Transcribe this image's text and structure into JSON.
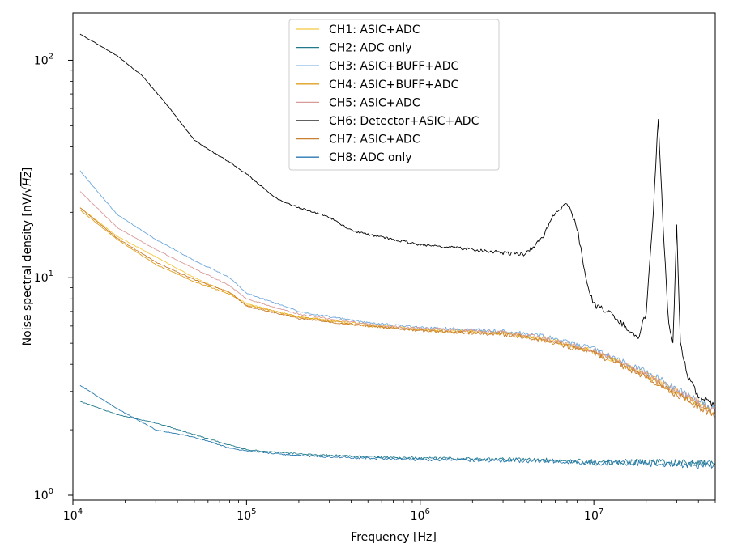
{
  "chart_data": {
    "type": "line",
    "title": "",
    "xlabel": "Frequency [Hz]",
    "ylabel_prefix": "Noise spectral density [nV/",
    "ylabel_radicand": "Hz",
    "ylabel_suffix": "]",
    "xscale": "log",
    "yscale": "log",
    "xlim": [
      10000,
      50000000
    ],
    "ylim": [
      0.95,
      165
    ],
    "grid": false,
    "legend_position": "upper-center",
    "x_ticks": [
      {
        "value": 10000,
        "base": "10",
        "exp": "4"
      },
      {
        "value": 100000,
        "base": "10",
        "exp": "5"
      },
      {
        "value": 1000000,
        "base": "10",
        "exp": "6"
      },
      {
        "value": 10000000,
        "base": "10",
        "exp": "7"
      }
    ],
    "y_ticks": [
      {
        "value": 1,
        "base": "10",
        "exp": "0"
      },
      {
        "value": 10,
        "base": "10",
        "exp": "1"
      },
      {
        "value": 100,
        "base": "10",
        "exp": "2"
      }
    ],
    "series": [
      {
        "name": "CH1: ASIC+ADC",
        "color": "#f5c842",
        "points": [
          [
            11000,
            21
          ],
          [
            18000,
            15.5
          ],
          [
            30000,
            12.5
          ],
          [
            50000,
            10
          ],
          [
            80000,
            8.5
          ],
          [
            100000,
            7.6
          ],
          [
            200000,
            6.6
          ],
          [
            500000,
            6.1
          ],
          [
            1000000,
            5.8
          ],
          [
            3000000,
            5.6
          ],
          [
            5000000,
            5.3
          ],
          [
            10000000,
            4.6
          ],
          [
            20000000,
            3.6
          ],
          [
            30000,
            12.5
          ],
          [
            50000000,
            2.4
          ]
        ]
      },
      {
        "name": "CH2: ADC only",
        "color": "#1f7a8c",
        "points": [
          [
            11000,
            2.7
          ],
          [
            18000,
            2.35
          ],
          [
            30000,
            2.15
          ],
          [
            50000,
            1.9
          ],
          [
            80000,
            1.7
          ],
          [
            100000,
            1.62
          ],
          [
            200000,
            1.55
          ],
          [
            500000,
            1.5
          ],
          [
            1000000,
            1.48
          ],
          [
            5000000,
            1.45
          ],
          [
            10000000,
            1.42
          ],
          [
            20000000,
            1.42
          ],
          [
            50000000,
            1.4
          ]
        ]
      },
      {
        "name": "CH3: ASIC+BUFF+ADC",
        "color": "#6fa8dc",
        "points": [
          [
            11000,
            31
          ],
          [
            18000,
            19.5
          ],
          [
            30000,
            15
          ],
          [
            50000,
            12
          ],
          [
            80000,
            10
          ],
          [
            100000,
            8.5
          ],
          [
            200000,
            7
          ],
          [
            500000,
            6.2
          ],
          [
            1000000,
            5.9
          ],
          [
            3000000,
            5.7
          ],
          [
            5000000,
            5.4
          ],
          [
            10000000,
            4.7
          ],
          [
            20000000,
            3.7
          ],
          [
            50000000,
            2.45
          ]
        ]
      },
      {
        "name": "CH4: ASIC+BUFF+ADC",
        "color": "#e0a020",
        "points": [
          [
            11000,
            20.5
          ],
          [
            18000,
            15
          ],
          [
            30000,
            11.5
          ],
          [
            50000,
            9.6
          ],
          [
            80000,
            8.4
          ],
          [
            100000,
            7.5
          ],
          [
            200000,
            6.6
          ],
          [
            500000,
            6
          ],
          [
            1000000,
            5.75
          ],
          [
            3000000,
            5.55
          ],
          [
            5000000,
            5.25
          ],
          [
            10000000,
            4.55
          ],
          [
            20000000,
            3.55
          ],
          [
            50000000,
            2.35
          ]
        ]
      },
      {
        "name": "CH5: ASIC+ADC",
        "color": "#d99a9a",
        "points": [
          [
            11000,
            25
          ],
          [
            18000,
            17
          ],
          [
            30000,
            13.5
          ],
          [
            50000,
            11
          ],
          [
            80000,
            9.2
          ],
          [
            100000,
            8
          ],
          [
            200000,
            6.8
          ],
          [
            500000,
            6.1
          ],
          [
            1000000,
            5.85
          ],
          [
            3000000,
            5.6
          ],
          [
            5000000,
            5.3
          ],
          [
            10000000,
            4.6
          ],
          [
            20000000,
            3.6
          ],
          [
            50000000,
            2.4
          ]
        ]
      },
      {
        "name": "CH6: Detector+ASIC+ADC",
        "color": "#000000",
        "points": [
          [
            11000,
            132
          ],
          [
            18000,
            105
          ],
          [
            25000,
            85
          ],
          [
            35000,
            62
          ],
          [
            50000,
            43
          ],
          [
            60000,
            39
          ],
          [
            80000,
            34
          ],
          [
            100000,
            30
          ],
          [
            150000,
            23
          ],
          [
            200000,
            21
          ],
          [
            300000,
            19
          ],
          [
            400000,
            16.5
          ],
          [
            500000,
            15.8
          ],
          [
            700000,
            15
          ],
          [
            1000000,
            14.2
          ],
          [
            2000000,
            13.5
          ],
          [
            3000000,
            13
          ],
          [
            4000000,
            12.8
          ],
          [
            5000000,
            15
          ],
          [
            6000000,
            20
          ],
          [
            7000000,
            22
          ],
          [
            8000000,
            17
          ],
          [
            9000000,
            10
          ],
          [
            10000000,
            7.5
          ],
          [
            12000000,
            7
          ],
          [
            15000000,
            6
          ],
          [
            18000000,
            5.2
          ],
          [
            20000000,
            7
          ],
          [
            22000000,
            20
          ],
          [
            23500000,
            55
          ],
          [
            25000000,
            18
          ],
          [
            27000000,
            6
          ],
          [
            28500000,
            5
          ],
          [
            30000000,
            17
          ],
          [
            31500000,
            5
          ],
          [
            35000000,
            3.4
          ],
          [
            40000000,
            2.9
          ],
          [
            50000000,
            2.6
          ]
        ]
      },
      {
        "name": "CH7: ASIC+ADC",
        "color": "#c87f30",
        "points": [
          [
            11000,
            21
          ],
          [
            18000,
            15.2
          ],
          [
            30000,
            11.8
          ],
          [
            50000,
            9.8
          ],
          [
            80000,
            8.6
          ],
          [
            100000,
            7.4
          ],
          [
            200000,
            6.5
          ],
          [
            500000,
            6
          ],
          [
            1000000,
            5.7
          ],
          [
            3000000,
            5.5
          ],
          [
            5000000,
            5.2
          ],
          [
            10000000,
            4.5
          ],
          [
            20000000,
            3.5
          ],
          [
            50000000,
            2.3
          ]
        ]
      },
      {
        "name": "CH8: ADC only",
        "color": "#2a7ab0",
        "points": [
          [
            11000,
            3.2
          ],
          [
            18000,
            2.5
          ],
          [
            30000,
            2
          ],
          [
            50000,
            1.85
          ],
          [
            80000,
            1.65
          ],
          [
            100000,
            1.6
          ],
          [
            200000,
            1.52
          ],
          [
            500000,
            1.48
          ],
          [
            1000000,
            1.46
          ],
          [
            5000000,
            1.44
          ],
          [
            10000000,
            1.41
          ],
          [
            20000000,
            1.4
          ],
          [
            50000000,
            1.38
          ]
        ]
      }
    ]
  }
}
